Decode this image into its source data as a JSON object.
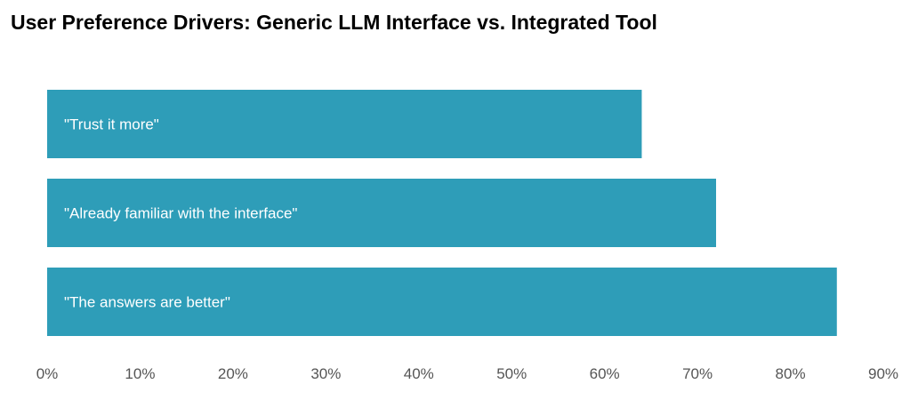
{
  "chart_data": {
    "type": "bar",
    "orientation": "horizontal",
    "title": "User Preference Drivers: Generic LLM Interface vs. Integrated Tool",
    "categories": [
      "\"Trust it more\"",
      " \"Already familiar with the interface\"",
      " \"The answers are better\""
    ],
    "values": [
      64,
      72,
      85
    ],
    "value_unit": "%",
    "xlim": [
      0,
      90
    ],
    "xticks": [
      "0%",
      "10%",
      "20%",
      "30%",
      "40%",
      "50%",
      "60%",
      "70%",
      "80%",
      "90%"
    ],
    "bar_color": "#2E9DB8",
    "label_color": "#FFFFFF",
    "grid": false,
    "legend": "none"
  }
}
